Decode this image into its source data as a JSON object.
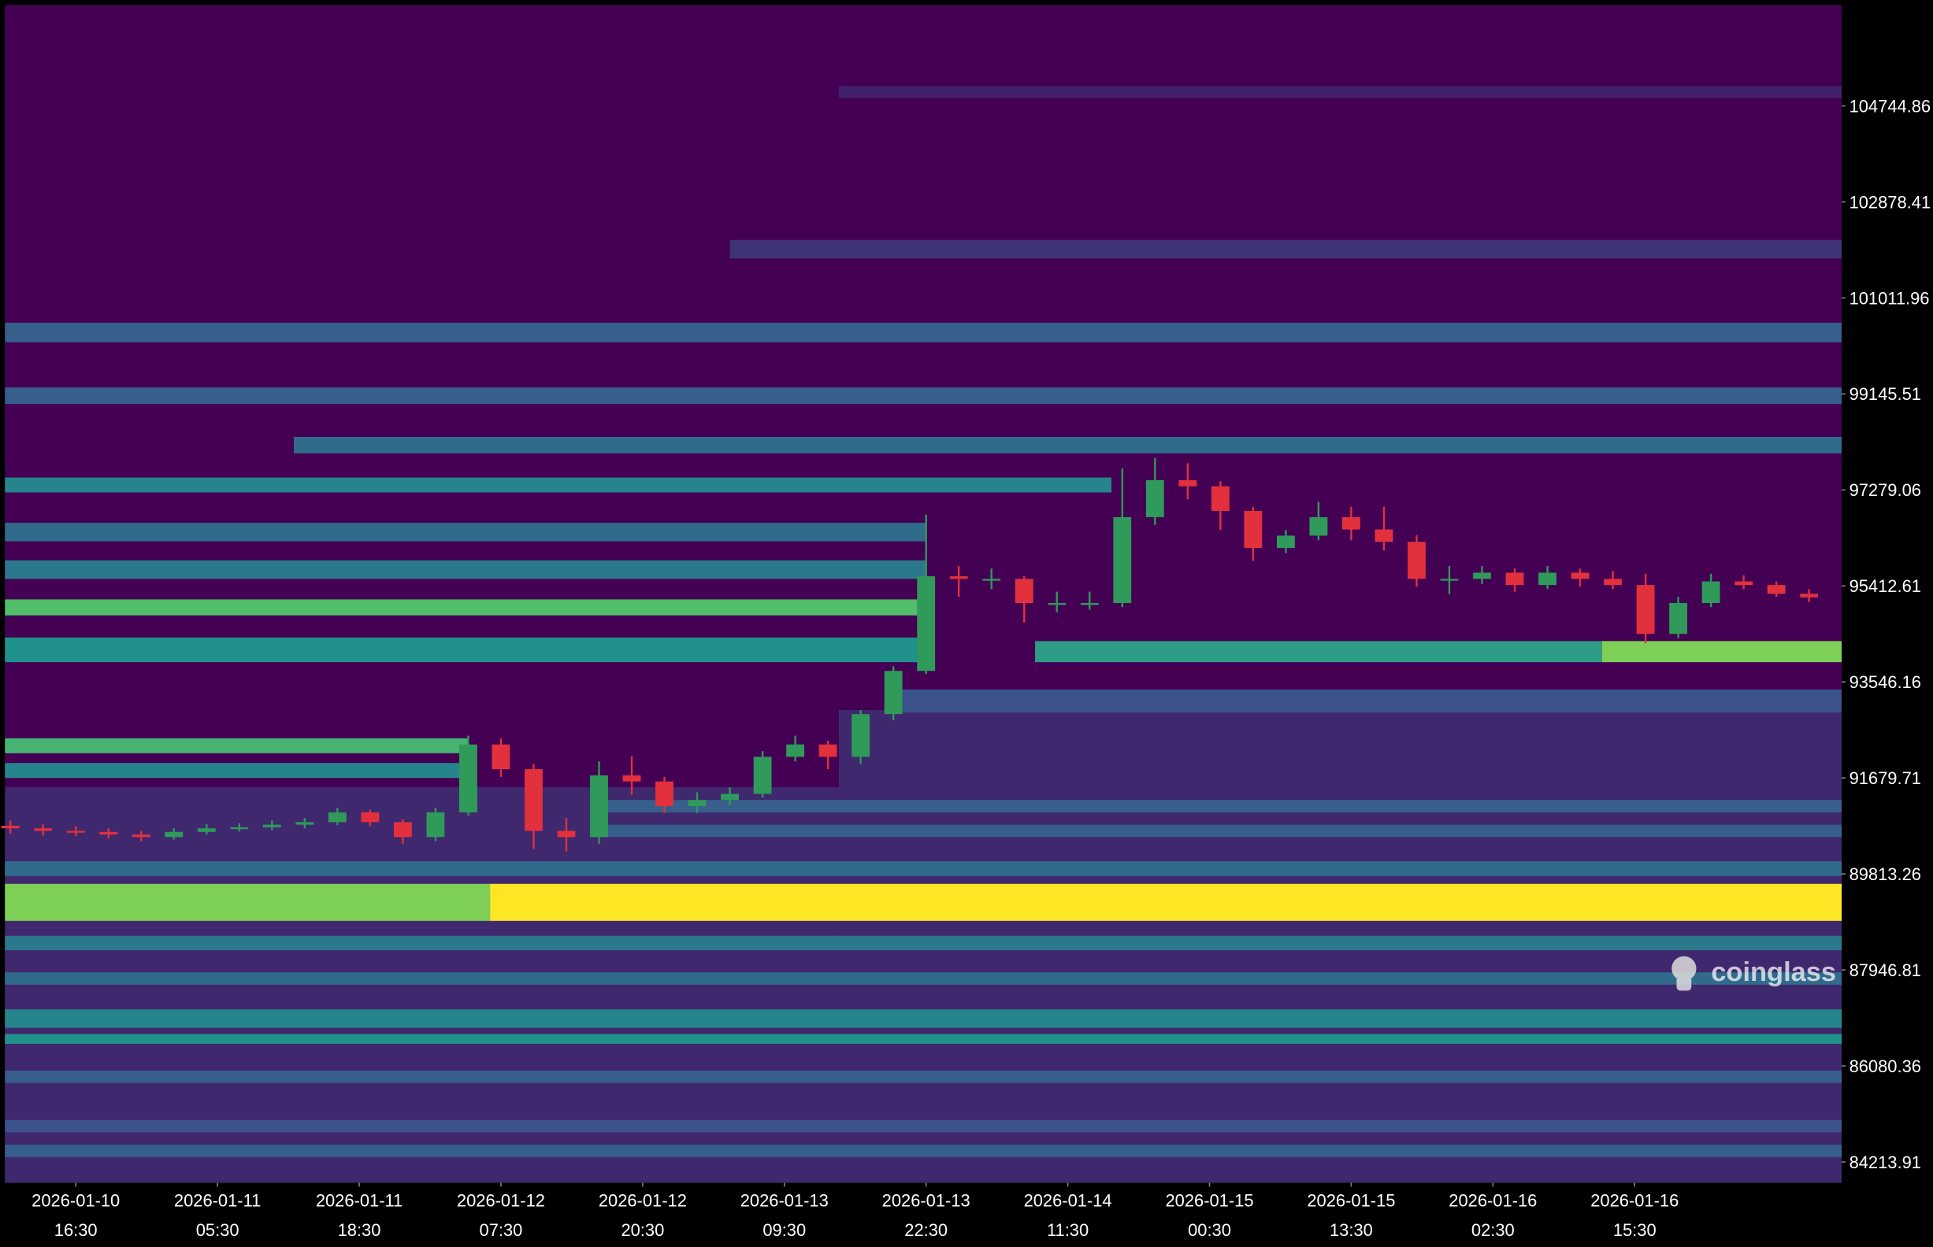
{
  "chart_data": {
    "type": "heatmap",
    "watermark": "coinglass",
    "xlim": [
      -6.5,
      162
    ],
    "ylim": [
      83807,
      106707
    ],
    "xticks": [
      {
        "value": 0,
        "label": "2026-01-10",
        "time": "16:30"
      },
      {
        "value": 13,
        "label": "2026-01-11",
        "time": "05:30"
      },
      {
        "value": 26,
        "label": "2026-01-11",
        "time": "18:30"
      },
      {
        "value": 39,
        "label": "2026-01-12",
        "time": "07:30"
      },
      {
        "value": 52,
        "label": "2026-01-12",
        "time": "20:30"
      },
      {
        "value": 65,
        "label": "2026-01-13",
        "time": "09:30"
      },
      {
        "value": 78,
        "label": "2026-01-13",
        "time": "22:30"
      },
      {
        "value": 91,
        "label": "2026-01-14",
        "time": "11:30"
      },
      {
        "value": 104,
        "label": "2026-01-15",
        "time": "00:30"
      },
      {
        "value": 117,
        "label": "2026-01-15",
        "time": "13:30"
      },
      {
        "value": 130,
        "label": "2026-01-16",
        "time": "02:30"
      },
      {
        "value": 143,
        "label": "2026-01-16",
        "time": "15:30"
      }
    ],
    "yticks": [
      84213.91,
      86080.36,
      87946.81,
      89813.26,
      91679.71,
      93546.16,
      95412.61,
      97279.06,
      99145.51,
      101011.96,
      102878.41,
      104744.86
    ],
    "colormap": [
      "#440154",
      "#3b528b",
      "#21918c",
      "#5ec962",
      "#fde725"
    ],
    "up_color": "#2f9a5a",
    "down_color": "#e2313c",
    "heatmap": [
      {
        "low": 83807,
        "high": 91500,
        "from": -6.5,
        "to": 70,
        "level": 0.12
      },
      {
        "low": 83807,
        "high": 93000,
        "from": 70,
        "to": 162,
        "level": 0.12
      },
      {
        "low": 88900,
        "high": 89620,
        "from": -6.5,
        "to": 38,
        "level": 0.8
      },
      {
        "low": 88900,
        "high": 89620,
        "from": 38,
        "to": 162,
        "level": 1
      },
      {
        "low": 92160,
        "high": 92450,
        "from": -6.5,
        "to": 36,
        "level": 0.65
      },
      {
        "low": 91680,
        "high": 91970,
        "from": -6.5,
        "to": 36,
        "level": 0.45
      },
      {
        "low": 94840,
        "high": 95150,
        "from": -6.5,
        "to": 78,
        "level": 0.7
      },
      {
        "low": 93930,
        "high": 94410,
        "from": -6.5,
        "to": 78,
        "level": 0.5
      },
      {
        "low": 93930,
        "high": 94340,
        "from": 88,
        "to": 140,
        "level": 0.55
      },
      {
        "low": 93930,
        "high": 94340,
        "from": 140,
        "to": 162,
        "level": 0.8
      },
      {
        "low": 95550,
        "high": 95910,
        "from": -6.5,
        "to": 78,
        "level": 0.4
      },
      {
        "low": 96280,
        "high": 96640,
        "from": -6.5,
        "to": 78,
        "level": 0.35
      },
      {
        "low": 97230,
        "high": 97520,
        "from": -6.5,
        "to": 95,
        "level": 0.45
      },
      {
        "low": 97990,
        "high": 98310,
        "from": 20,
        "to": 162,
        "level": 0.35
      },
      {
        "low": 98950,
        "high": 99270,
        "from": -6.5,
        "to": 162,
        "level": 0.3
      },
      {
        "low": 100150,
        "high": 100530,
        "from": -6.5,
        "to": 162,
        "level": 0.3
      },
      {
        "low": 101780,
        "high": 102140,
        "from": 60,
        "to": 162,
        "level": 0.15
      },
      {
        "low": 104900,
        "high": 105130,
        "from": 70,
        "to": 162,
        "level": 0.1
      },
      {
        "low": 92950,
        "high": 93400,
        "from": 75,
        "to": 162,
        "level": 0.25
      },
      {
        "low": 91010,
        "high": 91250,
        "from": 48,
        "to": 162,
        "level": 0.3
      },
      {
        "low": 90530,
        "high": 90770,
        "from": 48,
        "to": 162,
        "level": 0.3
      },
      {
        "low": 89770,
        "high": 90060,
        "from": -6.5,
        "to": 162,
        "level": 0.35
      },
      {
        "low": 88330,
        "high": 88610,
        "from": -6.5,
        "to": 162,
        "level": 0.4
      },
      {
        "low": 87660,
        "high": 87900,
        "from": -6.5,
        "to": 162,
        "level": 0.35
      },
      {
        "low": 86820,
        "high": 87180,
        "from": -6.5,
        "to": 162,
        "level": 0.45
      },
      {
        "low": 86510,
        "high": 86700,
        "from": -6.5,
        "to": 162,
        "level": 0.5
      },
      {
        "low": 85750,
        "high": 85990,
        "from": -6.5,
        "to": 162,
        "level": 0.3
      },
      {
        "low": 84790,
        "high": 85030,
        "from": -6.5,
        "to": 162,
        "level": 0.25
      },
      {
        "low": 84310,
        "high": 84550,
        "from": -6.5,
        "to": 162,
        "level": 0.3
      }
    ],
    "candles": [
      [
        -6,
        90750,
        90850,
        90600,
        90700
      ],
      [
        -3,
        90700,
        90780,
        90560,
        90650
      ],
      [
        0,
        90650,
        90740,
        90550,
        90630
      ],
      [
        3,
        90630,
        90700,
        90500,
        90580
      ],
      [
        6,
        90580,
        90650,
        90450,
        90530
      ],
      [
        9,
        90530,
        90700,
        90480,
        90630
      ],
      [
        12,
        90630,
        90780,
        90580,
        90700
      ],
      [
        15,
        90700,
        90800,
        90640,
        90720
      ],
      [
        18,
        90720,
        90850,
        90660,
        90770
      ],
      [
        21,
        90770,
        90900,
        90700,
        90820
      ],
      [
        24,
        90820,
        91100,
        90760,
        91010
      ],
      [
        27,
        91010,
        91060,
        90740,
        90820
      ],
      [
        30,
        90820,
        90880,
        90400,
        90530
      ],
      [
        33,
        90530,
        91100,
        90450,
        91010
      ],
      [
        36,
        91010,
        92500,
        90950,
        92330
      ],
      [
        39,
        92330,
        92450,
        91700,
        91850
      ],
      [
        42,
        91850,
        91950,
        90300,
        90650
      ],
      [
        45,
        90650,
        90900,
        90250,
        90530
      ],
      [
        48,
        90530,
        92000,
        90400,
        91730
      ],
      [
        51,
        91730,
        92100,
        91350,
        91610
      ],
      [
        54,
        91610,
        91700,
        91000,
        91130
      ],
      [
        57,
        91130,
        91400,
        91000,
        91250
      ],
      [
        60,
        91250,
        91500,
        91150,
        91370
      ],
      [
        63,
        91370,
        92200,
        91300,
        92090
      ],
      [
        66,
        92090,
        92500,
        92000,
        92330
      ],
      [
        69,
        92330,
        92400,
        91850,
        92090
      ],
      [
        72,
        92090,
        93000,
        91950,
        92920
      ],
      [
        75,
        92920,
        93850,
        92800,
        93760
      ],
      [
        78,
        93760,
        96800,
        93700,
        95600
      ],
      [
        81,
        95600,
        95800,
        95200,
        95550
      ],
      [
        84,
        95550,
        95750,
        95350,
        95550
      ],
      [
        87,
        95550,
        95600,
        94700,
        95080
      ],
      [
        90,
        95080,
        95300,
        94900,
        95080
      ],
      [
        93,
        95080,
        95300,
        94950,
        95080
      ],
      [
        96,
        95080,
        97700,
        95000,
        96750
      ],
      [
        99,
        96750,
        97900,
        96600,
        97470
      ],
      [
        102,
        97470,
        97800,
        97100,
        97350
      ],
      [
        105,
        97350,
        97450,
        96500,
        96870
      ],
      [
        108,
        96870,
        96950,
        95900,
        96150
      ],
      [
        111,
        96150,
        96500,
        96050,
        96390
      ],
      [
        114,
        96390,
        97050,
        96300,
        96750
      ],
      [
        117,
        96750,
        96950,
        96300,
        96510
      ],
      [
        120,
        96510,
        96950,
        96100,
        96270
      ],
      [
        123,
        96270,
        96400,
        95400,
        95550
      ],
      [
        126,
        95550,
        95800,
        95250,
        95550
      ],
      [
        129,
        95550,
        95800,
        95450,
        95670
      ],
      [
        132,
        95670,
        95750,
        95300,
        95430
      ],
      [
        135,
        95430,
        95800,
        95350,
        95670
      ],
      [
        138,
        95670,
        95750,
        95400,
        95550
      ],
      [
        141,
        95550,
        95700,
        95350,
        95430
      ],
      [
        144,
        95430,
        95650,
        94300,
        94480
      ],
      [
        147,
        94480,
        95200,
        94400,
        95080
      ],
      [
        150,
        95080,
        95650,
        95000,
        95500
      ],
      [
        153,
        95500,
        95620,
        95350,
        95430
      ],
      [
        156,
        95430,
        95500,
        95200,
        95260
      ],
      [
        159,
        95260,
        95350,
        95100,
        95190
      ]
    ]
  }
}
